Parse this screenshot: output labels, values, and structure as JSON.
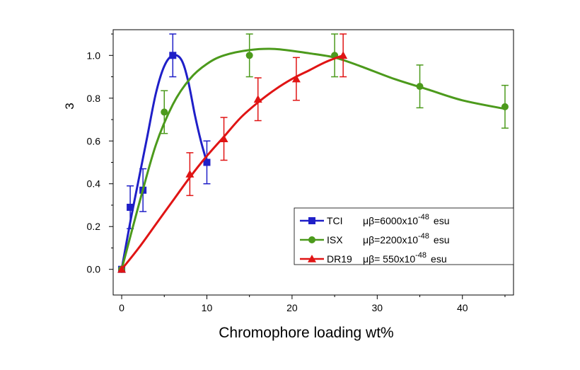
{
  "chart_data": {
    "type": "scatter",
    "xlabel": "Chromophore loading wt%",
    "ylabel": "3",
    "xlim": [
      -1,
      46
    ],
    "ylim": [
      -0.12,
      1.12
    ],
    "xticks": [
      0,
      10,
      20,
      30,
      40
    ],
    "yticks": [
      0.0,
      0.2,
      0.4,
      0.6,
      0.8,
      1.0
    ],
    "xtick_labels": [
      "0",
      "10",
      "20",
      "30",
      "40"
    ],
    "ytick_labels": [
      "0.0",
      "0.2",
      "0.4",
      "0.6",
      "0.8",
      "1.0"
    ],
    "grid": false,
    "legend_position": "bottom-right",
    "series": [
      {
        "name": "TCI",
        "legend_mu": "μβ=6000x10",
        "legend_exp": "-48",
        "legend_unit": "esu",
        "color": "#1f1fc8",
        "marker": "square",
        "points": [
          {
            "x": 0,
            "y": 0.0,
            "err": 0
          },
          {
            "x": 1,
            "y": 0.29,
            "err": 0.1
          },
          {
            "x": 2.5,
            "y": 0.37,
            "err": 0.1
          },
          {
            "x": 6,
            "y": 1.0,
            "err": 0.1
          },
          {
            "x": 10,
            "y": 0.5,
            "err": 0.1
          }
        ],
        "fit": [
          [
            0,
            0.0
          ],
          [
            1,
            0.22
          ],
          [
            2,
            0.42
          ],
          [
            3,
            0.62
          ],
          [
            4,
            0.82
          ],
          [
            5,
            0.95
          ],
          [
            6,
            1.0
          ],
          [
            7,
            0.98
          ],
          [
            7.8,
            0.88
          ],
          [
            8.6,
            0.72
          ],
          [
            9.3,
            0.6
          ],
          [
            10,
            0.5
          ]
        ]
      },
      {
        "name": "ISX",
        "legend_mu": "μβ=2200x10",
        "legend_exp": "-48",
        "legend_unit": "esu",
        "color": "#4c9a1c",
        "marker": "circle",
        "points": [
          {
            "x": 0,
            "y": 0.0,
            "err": 0
          },
          {
            "x": 5,
            "y": 0.735,
            "err": 0.1
          },
          {
            "x": 15,
            "y": 1.0,
            "err": 0.1
          },
          {
            "x": 25,
            "y": 1.0,
            "err": 0.1
          },
          {
            "x": 35,
            "y": 0.855,
            "err": 0.1
          },
          {
            "x": 45,
            "y": 0.76,
            "err": 0.1
          }
        ],
        "fit": [
          [
            0,
            0.0
          ],
          [
            2,
            0.3
          ],
          [
            4,
            0.58
          ],
          [
            6,
            0.77
          ],
          [
            8,
            0.89
          ],
          [
            10,
            0.96
          ],
          [
            12,
            1.0
          ],
          [
            15,
            1.025
          ],
          [
            18,
            1.03
          ],
          [
            22,
            1.01
          ],
          [
            25,
            0.99
          ],
          [
            28,
            0.95
          ],
          [
            32,
            0.89
          ],
          [
            36,
            0.84
          ],
          [
            40,
            0.79
          ],
          [
            45,
            0.75
          ]
        ]
      },
      {
        "name": "DR19",
        "legend_mu": "μβ=  550x10",
        "legend_exp": "-48",
        "legend_unit": "esu",
        "color": "#e01414",
        "marker": "triangle",
        "points": [
          {
            "x": 0,
            "y": 0.0,
            "err": 0
          },
          {
            "x": 8,
            "y": 0.445,
            "err": 0.1
          },
          {
            "x": 12,
            "y": 0.61,
            "err": 0.1
          },
          {
            "x": 16,
            "y": 0.795,
            "err": 0.1
          },
          {
            "x": 20.5,
            "y": 0.89,
            "err": 0.1
          },
          {
            "x": 26,
            "y": 1.0,
            "err": 0.1
          }
        ],
        "fit": [
          [
            0,
            0.0
          ],
          [
            2,
            0.1
          ],
          [
            4,
            0.21
          ],
          [
            6,
            0.32
          ],
          [
            8,
            0.43
          ],
          [
            10,
            0.53
          ],
          [
            12,
            0.62
          ],
          [
            14,
            0.71
          ],
          [
            16,
            0.78
          ],
          [
            18,
            0.84
          ],
          [
            20,
            0.89
          ],
          [
            22,
            0.93
          ],
          [
            24,
            0.97
          ],
          [
            26,
            1.0
          ]
        ]
      }
    ]
  }
}
